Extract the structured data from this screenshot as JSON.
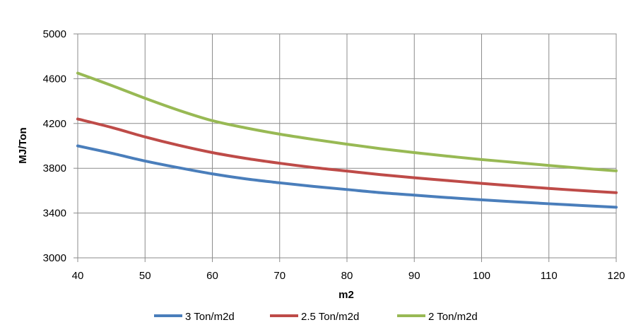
{
  "chart_data": {
    "type": "line",
    "title": "",
    "xlabel": "m2",
    "ylabel": "MJ/Ton",
    "xlim": [
      40,
      120
    ],
    "ylim": [
      3000,
      5000
    ],
    "x_ticks": [
      40,
      50,
      60,
      70,
      80,
      90,
      100,
      110,
      120
    ],
    "y_ticks": [
      3000,
      3400,
      3800,
      4200,
      4600,
      5000
    ],
    "grid": true,
    "legend_position": "bottom",
    "x": [
      40,
      45,
      50,
      55,
      60,
      65,
      70,
      75,
      80,
      85,
      90,
      95,
      100,
      105,
      110,
      115,
      120
    ],
    "series": [
      {
        "name": "3 Ton/m2d",
        "color": "#4a7ebb",
        "values": [
          4000,
          3935,
          3865,
          3805,
          3750,
          3705,
          3670,
          3638,
          3610,
          3582,
          3560,
          3538,
          3518,
          3500,
          3483,
          3467,
          3452
        ]
      },
      {
        "name": "2.5 Ton/m2d",
        "color": "#be4b48",
        "values": [
          4240,
          4165,
          4080,
          4005,
          3940,
          3888,
          3845,
          3807,
          3775,
          3743,
          3715,
          3690,
          3665,
          3642,
          3620,
          3600,
          3582
        ]
      },
      {
        "name": "2 Ton/m2d",
        "color": "#98b954",
        "values": [
          4650,
          4540,
          4425,
          4318,
          4225,
          4160,
          4105,
          4058,
          4015,
          3975,
          3940,
          3908,
          3878,
          3852,
          3825,
          3800,
          3777
        ]
      }
    ]
  }
}
